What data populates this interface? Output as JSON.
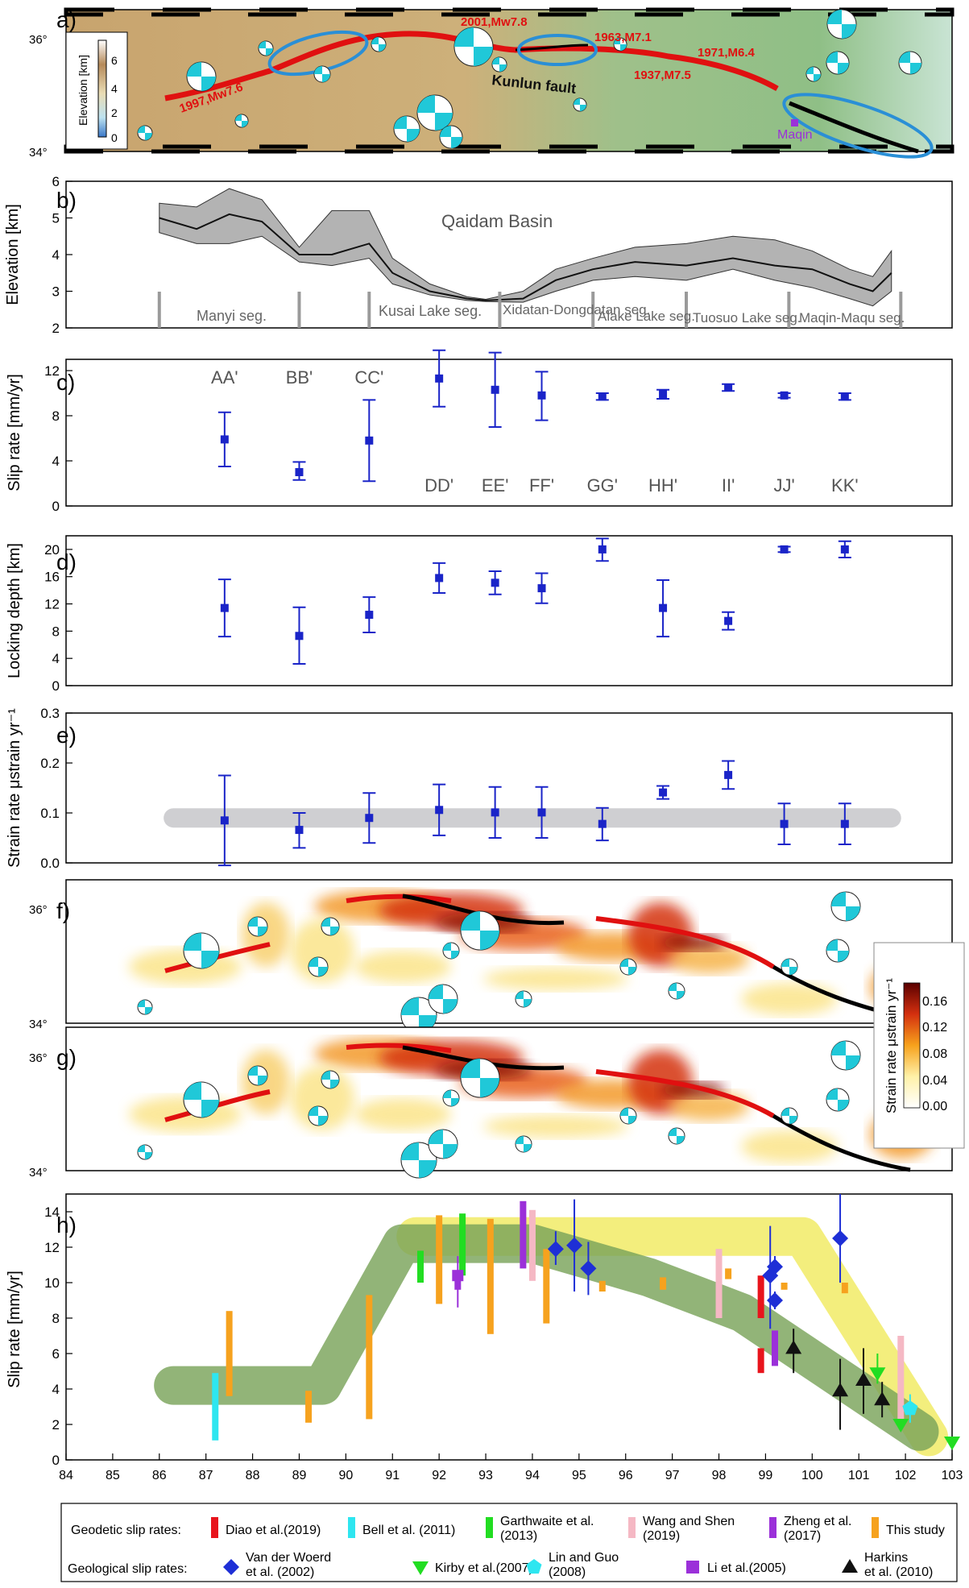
{
  "panels": {
    "a": {
      "label": "a)",
      "lat_ticks": [
        "36°",
        "34°"
      ],
      "colorbar": {
        "title": "Elevation [km]",
        "ticks": [
          "6",
          "4",
          "2",
          "0"
        ]
      },
      "events": [
        "2001,Mw7.8",
        "1963,M7.1",
        "1971,M6.4",
        "1937,M7.5",
        "1997,Mw7.6"
      ],
      "fault_label": "Kunlun fault",
      "town_label": "Maqin",
      "colors": {
        "rupture": "#e01010",
        "fault": "#000000",
        "gap_ellipse": "#2a8fd6",
        "beachball": "#20c8d8",
        "town": "#9b30d9"
      }
    },
    "b": {
      "label": "b)",
      "ylabel": "Elevation [km]",
      "yticks": [
        "6",
        "5",
        "4",
        "3",
        "2"
      ],
      "basin_label": "Qaidam Basin",
      "segments": [
        "Manyi seg.",
        "Kusai Lake seg.",
        "Xidatan-Dongdatan seg.",
        "Alake Lake seg.",
        "Tuosuo Lake seg.",
        "Maqin-Maqu seg."
      ]
    },
    "c": {
      "label": "c)",
      "ylabel": "Slip rate [mm/yr]",
      "yticks": [
        "12",
        "8",
        "4",
        "0"
      ]
    },
    "d": {
      "label": "d)",
      "ylabel": "Locking depth [km]",
      "yticks": [
        "20",
        "16",
        "12",
        "8",
        "4",
        "0"
      ]
    },
    "e": {
      "label": "e)",
      "ylabel": "Strain rate  μstrain yr⁻¹",
      "yticks": [
        "0.3",
        "0.2",
        "0.1",
        "0.0"
      ]
    },
    "f": {
      "label": "f)",
      "lat_ticks": [
        "36°",
        "34°"
      ]
    },
    "g": {
      "label": "g)",
      "lat_ticks": [
        "36°",
        "34°"
      ]
    },
    "strain_colorbar": {
      "title": "Strain rate  μstrain yr⁻¹",
      "ticks": [
        "0.16",
        "0.12",
        "0.08",
        "0.04",
        "0.00"
      ]
    },
    "h": {
      "label": "h)",
      "ylabel": "Slip rate [mm/yr]",
      "yticks": [
        "14",
        "12",
        "10",
        "8",
        "6",
        "4",
        "2",
        "0"
      ]
    }
  },
  "xticks": [
    "84",
    "85",
    "86",
    "87",
    "88",
    "89",
    "90",
    "91",
    "92",
    "93",
    "94",
    "95",
    "96",
    "97",
    "98",
    "99",
    "100",
    "101",
    "102",
    "103"
  ],
  "legend": {
    "geodetic_title": "Geodetic slip rates:",
    "geological_title": "Geological slip rates:",
    "geodetic": [
      {
        "name": "Diao et al.(2019)",
        "color": "#e8141c"
      },
      {
        "name": "Bell et al. (2011)",
        "color": "#2ee6f0"
      },
      {
        "name": "Garthwaite et al. (2013)",
        "color": "#22dd22"
      },
      {
        "name": "Wang and Shen (2019)",
        "color": "#f5b8c4"
      },
      {
        "name": "Zheng et al. (2017)",
        "color": "#9b30d9"
      },
      {
        "name": "This study",
        "color": "#f6a21e"
      }
    ],
    "geological": [
      {
        "name": "Van der Woerd et al. (2002)",
        "color": "#1e2fd6",
        "shape": "diamond"
      },
      {
        "name": "Kirby et al.(2007)",
        "color": "#22dd22",
        "shape": "triangle-down"
      },
      {
        "name": "Lin and Guo (2008)",
        "color": "#2ee6f0",
        "shape": "pentagon"
      },
      {
        "name": "Li et al.(2005)",
        "color": "#9b30d9",
        "shape": "square"
      },
      {
        "name": "Harkins et al. (2010)",
        "color": "#111111",
        "shape": "triangle-up"
      }
    ]
  },
  "chart_data": [
    {
      "panel": "c",
      "type": "scatter",
      "ylabel": "Slip rate [mm/yr]",
      "ylim": [
        0,
        13
      ],
      "points": [
        {
          "label": "AA'",
          "x": 87.4,
          "y": 5.9,
          "lo": 3.5,
          "hi": 8.3
        },
        {
          "label": "BB'",
          "x": 89.0,
          "y": 3.0,
          "lo": 2.3,
          "hi": 3.9
        },
        {
          "label": "CC'",
          "x": 90.5,
          "y": 5.8,
          "lo": 2.2,
          "hi": 9.4
        },
        {
          "label": "DD'",
          "x": 92.0,
          "y": 11.3,
          "lo": 8.8,
          "hi": 13.8
        },
        {
          "label": "EE'",
          "x": 93.2,
          "y": 10.3,
          "lo": 7.0,
          "hi": 13.6
        },
        {
          "label": "FF'",
          "x": 94.2,
          "y": 9.8,
          "lo": 7.6,
          "hi": 11.9
        },
        {
          "label": "GG'",
          "x": 95.5,
          "y": 9.7,
          "lo": 9.4,
          "hi": 10.0
        },
        {
          "label": "HH'",
          "x": 96.8,
          "y": 9.9,
          "lo": 9.5,
          "hi": 10.3
        },
        {
          "label": "II'",
          "x": 98.2,
          "y": 10.5,
          "lo": 10.2,
          "hi": 10.8
        },
        {
          "label": "JJ'",
          "x": 99.4,
          "y": 9.8,
          "lo": 9.6,
          "hi": 10.0
        },
        {
          "label": "KK'",
          "x": 100.7,
          "y": 9.7,
          "lo": 9.4,
          "hi": 10.0
        }
      ]
    },
    {
      "panel": "d",
      "type": "scatter",
      "ylabel": "Locking depth [km]",
      "ylim": [
        0,
        22
      ],
      "points": [
        {
          "x": 87.4,
          "y": 11.4,
          "lo": 7.2,
          "hi": 15.6
        },
        {
          "x": 89.0,
          "y": 7.3,
          "lo": 3.2,
          "hi": 11.5
        },
        {
          "x": 90.5,
          "y": 10.4,
          "lo": 7.8,
          "hi": 13.0
        },
        {
          "x": 92.0,
          "y": 15.8,
          "lo": 13.6,
          "hi": 18.0
        },
        {
          "x": 93.2,
          "y": 15.1,
          "lo": 13.4,
          "hi": 16.8
        },
        {
          "x": 94.2,
          "y": 14.3,
          "lo": 12.1,
          "hi": 16.5
        },
        {
          "x": 95.5,
          "y": 20.0,
          "lo": 18.3,
          "hi": 21.6
        },
        {
          "x": 96.8,
          "y": 11.4,
          "lo": 7.2,
          "hi": 15.5
        },
        {
          "x": 98.2,
          "y": 9.5,
          "lo": 8.2,
          "hi": 10.8
        },
        {
          "x": 99.4,
          "y": 20.0,
          "lo": 19.6,
          "hi": 20.4
        },
        {
          "x": 100.7,
          "y": 20.0,
          "lo": 18.8,
          "hi": 21.2
        }
      ]
    },
    {
      "panel": "e",
      "type": "scatter",
      "ylabel": "Strain rate μstrain yr⁻¹",
      "ylim": [
        0,
        0.3
      ],
      "band": {
        "y": 0.09
      },
      "points": [
        {
          "x": 87.4,
          "y": 0.085,
          "lo": -0.005,
          "hi": 0.175
        },
        {
          "x": 89.0,
          "y": 0.066,
          "lo": 0.03,
          "hi": 0.1
        },
        {
          "x": 90.5,
          "y": 0.09,
          "lo": 0.04,
          "hi": 0.14
        },
        {
          "x": 92.0,
          "y": 0.106,
          "lo": 0.055,
          "hi": 0.157
        },
        {
          "x": 93.2,
          "y": 0.101,
          "lo": 0.05,
          "hi": 0.152
        },
        {
          "x": 94.2,
          "y": 0.101,
          "lo": 0.05,
          "hi": 0.152
        },
        {
          "x": 95.5,
          "y": 0.078,
          "lo": 0.045,
          "hi": 0.11
        },
        {
          "x": 96.8,
          "y": 0.141,
          "lo": 0.128,
          "hi": 0.154
        },
        {
          "x": 98.2,
          "y": 0.176,
          "lo": 0.148,
          "hi": 0.204
        },
        {
          "x": 99.4,
          "y": 0.078,
          "lo": 0.037,
          "hi": 0.119
        },
        {
          "x": 100.7,
          "y": 0.078,
          "lo": 0.037,
          "hi": 0.119
        }
      ]
    },
    {
      "panel": "b",
      "type": "area",
      "ylabel": "Elevation [km]",
      "ylim": [
        2,
        6
      ],
      "segment_bounds": [
        86.0,
        89.0,
        90.5,
        93.3,
        95.3,
        97.3,
        99.5,
        101.9
      ],
      "profile": [
        {
          "x": 86.0,
          "y": 5.0,
          "lo": 4.6,
          "hi": 5.4
        },
        {
          "x": 86.8,
          "y": 4.7,
          "lo": 4.3,
          "hi": 5.3
        },
        {
          "x": 87.5,
          "y": 5.1,
          "lo": 4.3,
          "hi": 5.8
        },
        {
          "x": 88.2,
          "y": 4.9,
          "lo": 4.5,
          "hi": 5.5
        },
        {
          "x": 89.0,
          "y": 4.0,
          "lo": 3.8,
          "hi": 4.2
        },
        {
          "x": 89.7,
          "y": 4.0,
          "lo": 3.7,
          "hi": 5.2
        },
        {
          "x": 90.5,
          "y": 4.3,
          "lo": 3.9,
          "hi": 5.2
        },
        {
          "x": 91.0,
          "y": 3.5,
          "lo": 3.2,
          "hi": 3.9
        },
        {
          "x": 91.8,
          "y": 3.0,
          "lo": 2.9,
          "hi": 3.2
        },
        {
          "x": 92.6,
          "y": 2.8,
          "lo": 2.75,
          "hi": 2.85
        },
        {
          "x": 93.0,
          "y": 2.75,
          "lo": 2.72,
          "hi": 2.78
        },
        {
          "x": 93.8,
          "y": 2.8,
          "lo": 2.7,
          "hi": 3.0
        },
        {
          "x": 94.5,
          "y": 3.3,
          "lo": 3.0,
          "hi": 3.6
        },
        {
          "x": 95.3,
          "y": 3.6,
          "lo": 3.3,
          "hi": 3.9
        },
        {
          "x": 96.2,
          "y": 3.8,
          "lo": 3.4,
          "hi": 4.2
        },
        {
          "x": 97.3,
          "y": 3.7,
          "lo": 3.3,
          "hi": 4.3
        },
        {
          "x": 98.3,
          "y": 3.9,
          "lo": 3.6,
          "hi": 4.5
        },
        {
          "x": 99.2,
          "y": 3.7,
          "lo": 3.3,
          "hi": 4.4
        },
        {
          "x": 100.0,
          "y": 3.6,
          "lo": 3.1,
          "hi": 4.1
        },
        {
          "x": 100.8,
          "y": 3.2,
          "lo": 2.8,
          "hi": 3.6
        },
        {
          "x": 101.3,
          "y": 3.0,
          "lo": 2.6,
          "hi": 3.4
        },
        {
          "x": 101.7,
          "y": 3.5,
          "lo": 3.0,
          "hi": 4.1
        }
      ]
    },
    {
      "panel": "h",
      "type": "scatter",
      "ylabel": "Slip rate [mm/yr]",
      "ylim": [
        0,
        15
      ],
      "xlim": [
        84,
        103
      ],
      "bands": [
        {
          "color": "#7aa35a",
          "points": [
            [
              86.3,
              4.2
            ],
            [
              89.5,
              4.2
            ],
            [
              91.2,
              12.2
            ],
            [
              94.0,
              12.2
            ],
            [
              96.5,
              10.3
            ],
            [
              98.5,
              8.3
            ],
            [
              102.3,
              1.6
            ]
          ]
        },
        {
          "color": "#f0ea60",
          "points": [
            [
              91.5,
              12.6
            ],
            [
              99.8,
              12.6
            ],
            [
              102.5,
              1.3
            ]
          ]
        }
      ],
      "bars": [
        {
          "x": 87.5,
          "lo": 3.6,
          "hi": 8.4,
          "color": "#f6a21e"
        },
        {
          "x": 89.2,
          "lo": 2.1,
          "hi": 3.9,
          "color": "#f6a21e"
        },
        {
          "x": 90.5,
          "lo": 2.3,
          "hi": 9.3,
          "color": "#f6a21e"
        },
        {
          "x": 92.0,
          "lo": 8.8,
          "hi": 13.8,
          "color": "#f6a21e"
        },
        {
          "x": 93.1,
          "lo": 7.1,
          "hi": 13.6,
          "color": "#f6a21e"
        },
        {
          "x": 94.3,
          "lo": 7.7,
          "hi": 11.9,
          "color": "#f6a21e"
        },
        {
          "x": 95.5,
          "lo": 9.5,
          "hi": 10.1,
          "color": "#f6a21e"
        },
        {
          "x": 96.8,
          "lo": 9.6,
          "hi": 10.3,
          "color": "#f6a21e"
        },
        {
          "x": 98.2,
          "lo": 10.2,
          "hi": 10.8,
          "color": "#f6a21e"
        },
        {
          "x": 99.4,
          "lo": 9.6,
          "hi": 10.0,
          "color": "#f6a21e"
        },
        {
          "x": 100.7,
          "lo": 9.4,
          "hi": 10.0,
          "color": "#f6a21e"
        },
        {
          "x": 87.2,
          "lo": 1.1,
          "hi": 4.9,
          "color": "#2ee6f0"
        },
        {
          "x": 91.6,
          "lo": 10.0,
          "hi": 11.8,
          "color": "#22dd22"
        },
        {
          "x": 92.5,
          "lo": 10.4,
          "hi": 13.9,
          "color": "#22dd22"
        },
        {
          "x": 93.8,
          "lo": 10.8,
          "hi": 14.6,
          "color": "#9b30d9"
        },
        {
          "x": 94.0,
          "lo": 10.1,
          "hi": 14.1,
          "color": "#f5b8c4"
        },
        {
          "x": 92.4,
          "lo": 9.6,
          "hi": 10.6,
          "color": "#9b30d9"
        },
        {
          "x": 98.0,
          "lo": 8.0,
          "hi": 11.9,
          "color": "#f5b8c4"
        },
        {
          "x": 98.9,
          "lo": 8.0,
          "hi": 10.4,
          "color": "#e8141c"
        },
        {
          "x": 98.9,
          "lo": 4.9,
          "hi": 6.3,
          "color": "#e8141c"
        },
        {
          "x": 99.2,
          "lo": 5.3,
          "hi": 7.3,
          "color": "#9b30d9"
        },
        {
          "x": 101.9,
          "lo": 2.1,
          "hi": 7.0,
          "color": "#f5b8c4"
        }
      ],
      "markers": [
        {
          "x": 94.5,
          "y": 11.9,
          "lo": 11.0,
          "hi": 12.9,
          "shape": "diamond",
          "color": "#1e2fd6"
        },
        {
          "x": 94.9,
          "y": 12.1,
          "lo": 9.5,
          "hi": 14.7,
          "shape": "diamond",
          "color": "#1e2fd6"
        },
        {
          "x": 95.2,
          "y": 10.8,
          "lo": 9.3,
          "hi": 12.3,
          "shape": "diamond",
          "color": "#1e2fd6"
        },
        {
          "x": 99.1,
          "y": 10.4,
          "lo": 7.4,
          "hi": 13.2,
          "shape": "diamond",
          "color": "#1e2fd6"
        },
        {
          "x": 99.2,
          "y": 10.9,
          "lo": 10.3,
          "hi": 11.5,
          "shape": "diamond",
          "color": "#1e2fd6"
        },
        {
          "x": 99.2,
          "y": 9.0,
          "lo": 8.5,
          "hi": 9.5,
          "shape": "diamond",
          "color": "#1e2fd6"
        },
        {
          "x": 100.6,
          "y": 12.5,
          "lo": 10.0,
          "hi": 15.0,
          "shape": "diamond",
          "color": "#1e2fd6"
        },
        {
          "x": 92.4,
          "y": 10.4,
          "lo": 8.6,
          "hi": 11.5,
          "shape": "square",
          "color": "#9b30d9"
        },
        {
          "x": 99.6,
          "y": 6.3,
          "lo": 4.9,
          "hi": 7.4,
          "shape": "triangle-up",
          "color": "#111111"
        },
        {
          "x": 100.6,
          "y": 3.9,
          "lo": 1.7,
          "hi": 5.7,
          "shape": "triangle-up",
          "color": "#111111"
        },
        {
          "x": 101.1,
          "y": 4.5,
          "lo": 2.6,
          "hi": 6.3,
          "shape": "triangle-up",
          "color": "#111111"
        },
        {
          "x": 101.5,
          "y": 3.4,
          "lo": 2.4,
          "hi": 4.4,
          "shape": "triangle-up",
          "color": "#111111"
        },
        {
          "x": 101.4,
          "y": 4.9,
          "lo": 4.3,
          "hi": 6.0,
          "shape": "triangle-down",
          "color": "#22dd22"
        },
        {
          "x": 101.9,
          "y": 2.0,
          "lo": 1.7,
          "hi": 2.3,
          "shape": "triangle-down",
          "color": "#22dd22"
        },
        {
          "x": 103.0,
          "y": 1.0,
          "lo": 0.7,
          "hi": 1.3,
          "shape": "triangle-down",
          "color": "#22dd22"
        },
        {
          "x": 102.1,
          "y": 2.9,
          "lo": 2.1,
          "hi": 3.7,
          "shape": "pentagon",
          "color": "#2ee6f0"
        }
      ]
    }
  ]
}
